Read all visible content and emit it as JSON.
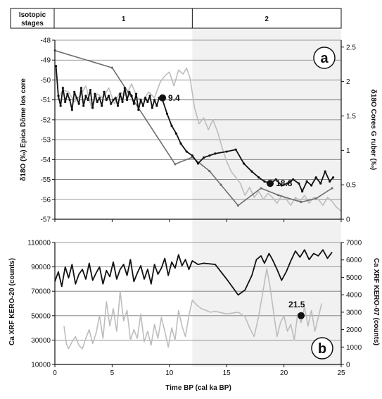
{
  "header": {
    "label_line1": "Isotopic",
    "label_line2": "stages",
    "stages": [
      {
        "label": "1",
        "x_from": 0,
        "x_to": 12
      },
      {
        "label": "2",
        "x_from": 12,
        "x_to": 25
      }
    ]
  },
  "colors": {
    "black_series": "#111111",
    "gray_series": "#6e6e6e",
    "light_series": "#bdbdbd",
    "stage2_shade": "#f1f1f1",
    "grid": "#777777"
  },
  "chart_data": [
    {
      "id": "a",
      "type": "line",
      "panel_label": "a",
      "xlim": [
        0,
        25
      ],
      "ylim_left": [
        -57,
        -48
      ],
      "ylim_right": [
        0,
        2.6
      ],
      "ylabel_left": "δ18O (‰) Epica Dôme los core",
      "ylabel_right": "δ18O Cores G ruber (‰)",
      "yticks_left": [
        "-48",
        "-49",
        "-50",
        "-51",
        "-52",
        "-53",
        "-54",
        "-55",
        "-56",
        "-57"
      ],
      "yticks_right": [
        "0",
        "0.5",
        "1",
        "1.5",
        "2",
        "2.5"
      ],
      "grid": true,
      "series": [
        {
          "axis": "left",
          "color": "light",
          "x": [
            0.2,
            0.7,
            1.2,
            1.7,
            2.2,
            2.7,
            3.2,
            3.7,
            4.2,
            4.7,
            5.2,
            5.7,
            6.2,
            6.7,
            7.2,
            7.7,
            8.2,
            8.7,
            9.2,
            9.6,
            10.0,
            10.4,
            10.8,
            11.2,
            11.5,
            11.8,
            12.2,
            12.6,
            13.0,
            13.4,
            13.8,
            14.2,
            14.6,
            15.0,
            15.4,
            15.8,
            16.2,
            16.6,
            17.0,
            17.4,
            17.8,
            18.2,
            18.6,
            19.0,
            19.4,
            19.8,
            20.2,
            20.6,
            21.0,
            21.4,
            21.8,
            22.2,
            22.6,
            23.0,
            23.4,
            23.8,
            24.2,
            24.6,
            25.0
          ],
          "y": [
            -51.0,
            -50.5,
            -50.6,
            -51.1,
            -50.8,
            -50.3,
            -51.4,
            -50.7,
            -50.9,
            -50.4,
            -51.2,
            -50.6,
            -50.8,
            -50.2,
            -50.9,
            -51.0,
            -50.6,
            -50.9,
            -50.1,
            -49.8,
            -49.6,
            -50.3,
            -49.5,
            -49.7,
            -49.4,
            -49.9,
            -51.4,
            -52.2,
            -51.9,
            -52.5,
            -52.0,
            -52.6,
            -53.4,
            -54.1,
            -54.6,
            -54.9,
            -55.2,
            -55.8,
            -55.4,
            -55.9,
            -55.6,
            -56.0,
            -55.7,
            -55.9,
            -56.2,
            -55.8,
            -56.0,
            -56.3,
            -55.9,
            -56.1,
            -55.8,
            -56.2,
            -55.9,
            -56.0,
            -56.3,
            -55.9,
            -56.1,
            -56.4,
            -56.6
          ]
        },
        {
          "axis": "right",
          "color": "gray",
          "x": [
            0,
            5,
            10.5,
            12,
            13.5,
            14.5,
            16,
            18,
            19.5,
            21.5,
            22.8,
            24.2
          ],
          "y": [
            2.45,
            2.2,
            0.8,
            0.9,
            0.7,
            0.5,
            0.2,
            0.45,
            0.35,
            0.25,
            0.3,
            0.45
          ]
        },
        {
          "axis": "left",
          "color": "black",
          "x": [
            0.1,
            0.3,
            0.5,
            0.7,
            0.9,
            1.1,
            1.3,
            1.5,
            1.7,
            1.9,
            2.1,
            2.3,
            2.5,
            2.7,
            2.9,
            3.1,
            3.3,
            3.5,
            3.7,
            3.9,
            4.1,
            4.3,
            4.5,
            4.7,
            4.9,
            5.1,
            5.3,
            5.5,
            5.7,
            5.9,
            6.1,
            6.3,
            6.5,
            6.7,
            6.9,
            7.1,
            7.3,
            7.5,
            7.7,
            7.9,
            8.1,
            8.3,
            8.5,
            8.7,
            8.9,
            9.1,
            9.4,
            9.8,
            10.2,
            10.6,
            11.0,
            11.5,
            12.0,
            12.5,
            13.0,
            13.5,
            14.0,
            15.0,
            15.8,
            16.5,
            17.2,
            17.8,
            18.3,
            18.8,
            19.3,
            19.8,
            20.3,
            20.8,
            21.3,
            21.6,
            22.0,
            22.4,
            22.8,
            23.2,
            23.6,
            24.0,
            24.3
          ],
          "y": [
            -49.3,
            -50.8,
            -51.3,
            -50.4,
            -51.1,
            -50.7,
            -51.0,
            -51.5,
            -50.6,
            -50.9,
            -51.2,
            -50.4,
            -51.3,
            -50.8,
            -51.0,
            -50.5,
            -51.4,
            -50.7,
            -51.1,
            -50.9,
            -51.3,
            -50.6,
            -51.0,
            -50.8,
            -51.2,
            -51.0,
            -50.9,
            -51.3,
            -50.7,
            -51.1,
            -50.4,
            -51.0,
            -50.6,
            -50.8,
            -51.2,
            -50.7,
            -51.5,
            -51.0,
            -51.3,
            -50.9,
            -51.1,
            -50.8,
            -51.4,
            -51.0,
            -51.3,
            -50.9,
            -51.0,
            -51.7,
            -52.3,
            -52.7,
            -53.2,
            -53.6,
            -53.8,
            -54.2,
            -53.9,
            -53.8,
            -53.7,
            -53.6,
            -53.5,
            -54.2,
            -54.6,
            -54.9,
            -55.1,
            -55.2,
            -55.0,
            -55.3,
            -55.2,
            -55.0,
            -55.2,
            -55.6,
            -55.1,
            -55.3,
            -54.9,
            -55.2,
            -54.6,
            -55.1,
            -54.9
          ]
        }
      ],
      "annotations": [
        {
          "label": "9.4",
          "x": 9.4,
          "y": -50.9
        },
        {
          "label": "18.8",
          "x": 18.8,
          "y": -55.2
        }
      ]
    },
    {
      "id": "b",
      "type": "line",
      "panel_label": "b",
      "xlim": [
        0,
        25
      ],
      "ylim_left": [
        10000,
        110000
      ],
      "ylim_right": [
        0,
        7000
      ],
      "xlabel": "Time BP (cal ka BP)",
      "ylabel_left": "Ca XRF  KERO-20 (counts)",
      "ylabel_right": "Ca XRF  KERO-07 (counts)",
      "xticks": [
        "0",
        "5",
        "10",
        "15",
        "20",
        "25"
      ],
      "yticks_left": [
        "10000",
        "30000",
        "50000",
        "70000",
        "90000",
        "110000"
      ],
      "yticks_right": [
        "0",
        "1000",
        "2000",
        "3000",
        "4000",
        "5000",
        "6000",
        "7000"
      ],
      "grid": true,
      "series": [
        {
          "axis": "right",
          "color": "light",
          "x": [
            0.8,
            1.0,
            1.2,
            1.5,
            1.8,
            2.1,
            2.4,
            2.7,
            3.0,
            3.3,
            3.6,
            3.9,
            4.2,
            4.5,
            4.8,
            5.1,
            5.4,
            5.7,
            6.0,
            6.3,
            6.6,
            6.9,
            7.2,
            7.5,
            7.8,
            8.1,
            8.4,
            8.7,
            9.0,
            9.3,
            9.6,
            9.9,
            10.2,
            10.5,
            10.8,
            11.1,
            11.4,
            11.7,
            12.0,
            12.4,
            12.8,
            13.2,
            13.6,
            14.0,
            15.0,
            16.0,
            16.6,
            17.0,
            17.4,
            17.8,
            18.2,
            18.5,
            18.8,
            19.1,
            19.4,
            19.7,
            20.0,
            20.3,
            20.6,
            20.9,
            21.2,
            21.5,
            21.8,
            22.1,
            22.4,
            22.7,
            23.0,
            23.3
          ],
          "y": [
            2200,
            1200,
            900,
            1300,
            1600,
            1100,
            900,
            1500,
            2000,
            1200,
            1800,
            2800,
            1500,
            3600,
            2200,
            3200,
            1900,
            4200,
            2500,
            3100,
            1400,
            2000,
            1500,
            2900,
            1300,
            1900,
            1100,
            2300,
            1500,
            2700,
            1900,
            1000,
            2100,
            1400,
            3100,
            2200,
            1600,
            2800,
            3700,
            3400,
            3200,
            3100,
            3000,
            3050,
            2900,
            3000,
            2750,
            2100,
            1600,
            2800,
            4300,
            5500,
            4400,
            3000,
            1600,
            2400,
            2800,
            1900,
            2300,
            1400,
            2900,
            2400,
            3300,
            2200,
            3100,
            1900,
            2700,
            3500
          ]
        },
        {
          "axis": "left",
          "color": "black",
          "x": [
            0.0,
            0.3,
            0.6,
            0.9,
            1.2,
            1.5,
            1.8,
            2.1,
            2.4,
            2.7,
            3.0,
            3.3,
            3.6,
            3.9,
            4.2,
            4.5,
            4.8,
            5.1,
            5.4,
            5.7,
            6.0,
            6.3,
            6.6,
            6.9,
            7.2,
            7.5,
            7.8,
            8.1,
            8.4,
            8.7,
            9.0,
            9.3,
            9.6,
            9.9,
            10.2,
            10.5,
            10.8,
            11.1,
            11.4,
            11.7,
            12.0,
            12.5,
            13.0,
            14.0,
            15.0,
            16.0,
            16.6,
            17.2,
            17.6,
            18.0,
            18.3,
            18.7,
            19.0,
            19.4,
            19.8,
            20.2,
            20.6,
            21.0,
            21.4,
            21.8,
            22.2,
            22.6,
            23.0,
            23.4,
            23.8,
            24.2
          ],
          "y": [
            78000,
            86000,
            74000,
            90000,
            81000,
            92000,
            76000,
            84000,
            88000,
            80000,
            93000,
            79000,
            85000,
            90000,
            76000,
            87000,
            82000,
            94000,
            80000,
            88000,
            92000,
            83000,
            96000,
            78000,
            85000,
            91000,
            80000,
            88000,
            76000,
            92000,
            84000,
            89000,
            97000,
            83000,
            94000,
            89000,
            100000,
            91000,
            96000,
            88000,
            95000,
            92000,
            93000,
            92000,
            80000,
            67000,
            71000,
            83000,
            96000,
            99000,
            93000,
            101000,
            96000,
            88000,
            79000,
            86000,
            95000,
            103000,
            98000,
            104000,
            96000,
            101000,
            99000,
            104000,
            97000,
            102000
          ]
        }
      ],
      "annotations": [
        {
          "label": "21.5",
          "x": 21.5,
          "y": 2800
        }
      ]
    }
  ]
}
